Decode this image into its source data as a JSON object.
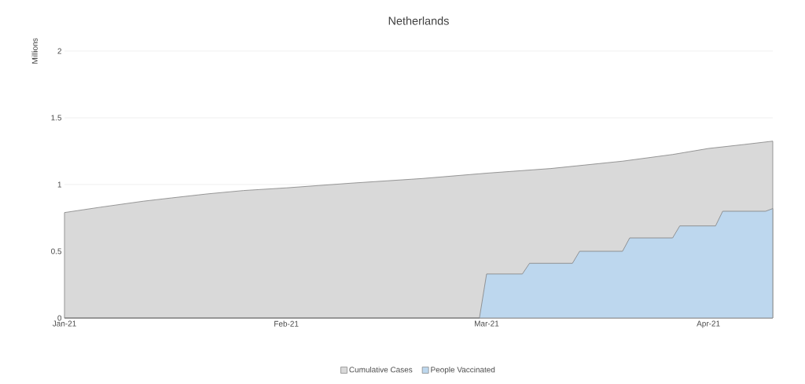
{
  "chart_data": {
    "type": "area",
    "title": "Netherlands",
    "ylabel": "Millions",
    "xlim": [
      "2021-01-01",
      "2021-04-10"
    ],
    "xticks": [
      {
        "value": "2021-01-01",
        "label": "Jan-21"
      },
      {
        "value": "2021-02-01",
        "label": "Feb-21"
      },
      {
        "value": "2021-03-01",
        "label": "Mar-21"
      },
      {
        "value": "2021-04-01",
        "label": "Apr-21"
      }
    ],
    "ylim": [
      0,
      2
    ],
    "yticks": [
      0,
      0.5,
      1,
      1.5,
      2
    ],
    "grid": "y",
    "legend": "bottom",
    "series": [
      {
        "name": "Cumulative Cases",
        "color": "#d9d9d9",
        "x": [
          "2021-01-01",
          "2021-01-06",
          "2021-01-12",
          "2021-01-16",
          "2021-01-21",
          "2021-01-26",
          "2021-02-01",
          "2021-02-10",
          "2021-02-20",
          "2021-03-01",
          "2021-03-10",
          "2021-03-20",
          "2021-03-27",
          "2021-04-01",
          "2021-04-06",
          "2021-04-10"
        ],
        "values": [
          0.79,
          0.83,
          0.875,
          0.9,
          0.93,
          0.955,
          0.975,
          1.01,
          1.045,
          1.085,
          1.12,
          1.175,
          1.225,
          1.27,
          1.3,
          1.325
        ]
      },
      {
        "name": "People Vaccinated",
        "color": "#bdd7ee",
        "x": [
          "2021-01-01",
          "2021-02-28",
          "2021-03-01",
          "2021-03-06",
          "2021-03-07",
          "2021-03-13",
          "2021-03-14",
          "2021-03-20",
          "2021-03-21",
          "2021-03-27",
          "2021-03-28",
          "2021-04-02",
          "2021-04-03",
          "2021-04-09",
          "2021-04-10"
        ],
        "values": [
          0,
          0,
          0.33,
          0.33,
          0.41,
          0.41,
          0.5,
          0.5,
          0.6,
          0.6,
          0.69,
          0.69,
          0.8,
          0.8,
          0.82
        ]
      }
    ]
  }
}
